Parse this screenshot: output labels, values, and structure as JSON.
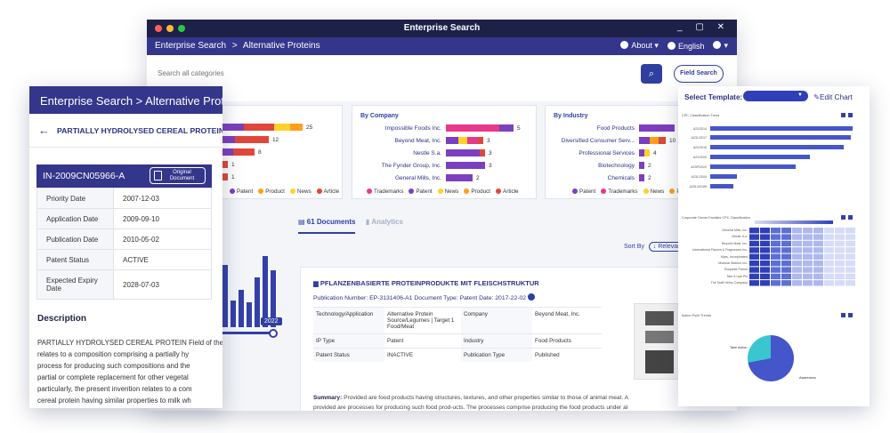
{
  "main_window": {
    "title": "Enterprise Search",
    "breadcrumb": [
      "Enterprise Search",
      ">",
      "Alternative Proteins"
    ],
    "nav": {
      "about": "About",
      "language": "English"
    },
    "search": {
      "placeholder": "Search all categories",
      "field_search": "Field Search"
    },
    "company_card": {
      "title": "By Company",
      "rows": [
        {
          "label": "Impossible Foods Inc.",
          "value": "5"
        },
        {
          "label": "Beyond Meat, Inc.",
          "value": "3"
        },
        {
          "label": "Nestle S.a.",
          "value": "3"
        },
        {
          "label": "The Fynder Group, Inc.",
          "value": "3"
        },
        {
          "label": "General Mills, Inc.",
          "value": "2"
        }
      ]
    },
    "industry_card": {
      "title": "By Industry",
      "rows": [
        {
          "label": "Food Products",
          "value": ""
        },
        {
          "label": "Diversified Consumer Serv...",
          "value": "10"
        },
        {
          "label": "Professional Services",
          "value": "4"
        },
        {
          "label": "Biotechnology",
          "value": "2"
        },
        {
          "label": "Chemicals",
          "value": "2"
        }
      ]
    },
    "first_card_values": [
      "25",
      "12",
      "8",
      "1",
      "1"
    ],
    "legend": [
      "Trademarks",
      "Patent",
      "Product",
      "News",
      "Article"
    ],
    "legend_short": [
      "Patent",
      "Product",
      "News",
      "Article"
    ],
    "timeline_year": "2022",
    "tabs": {
      "documents": "61 Documents",
      "analytics": "Analytics"
    },
    "sort": {
      "label": "Sort By",
      "value": "↓ Relevan"
    },
    "doc": {
      "title": "PFLANZENBASIERTE PROTEINPRODUKTE MIT FLEISCHSTRUKTUR",
      "meta": "Publication Number:  EP-3131406-A1    Document Type: Patent    Date:  2017-22-02",
      "rows": [
        {
          "k1": "Technology/Application",
          "v1": "Alternative Protein Source/Legumes | Target 1 Food/Meat",
          "k2": "Company",
          "v2": "Beyond Meat, Inc."
        },
        {
          "k1": "IP Type",
          "v1": "Patent",
          "k2": "Industry",
          "v2": "Food Products"
        },
        {
          "k1": "Patent Status",
          "v1": "INACTIVE",
          "k2": "Publication Type",
          "v2": "Published"
        }
      ],
      "summary_label": "Summary:",
      "summary": "Provided are food products having structures, textures, and other properties similar to those of animal meat. A",
      "summary2": "provided are processes for producing such food prod-ucts. The processes comprise producing the food products under al"
    }
  },
  "left_window": {
    "header": "Enterprise Search  >  Alternative Proteins",
    "title": "PARTIALLY HYDROLYSED CEREAL PROTEIN",
    "patent_id": "IN-2009CN05966-A",
    "original_doc": [
      "Original",
      "Document"
    ],
    "meta": [
      {
        "k": "Priority Date",
        "v": "2007-12-03"
      },
      {
        "k": "Application Date",
        "v": "2009-09-10"
      },
      {
        "k": "Publication Date",
        "v": "2010-05-02"
      },
      {
        "k": "Patent Status",
        "v": "ACTIVE"
      },
      {
        "k": "Expected Expiry Date",
        "v": "2028-07-03"
      }
    ],
    "description_heading": "Description",
    "description": [
      "PARTIALLY HYDROLYSED CEREAL PROTEIN Field of the",
      "relates to a composition comprising a partially hy",
      "process for producing such compositions and the",
      "partial or complete replacement for other vegetal",
      "particularly, the present invention relates to a com",
      "cereal protein having similar properties to milk wh"
    ]
  },
  "right_window": {
    "select_template": "Select Template:",
    "edit_chart": "Edit Chart",
    "chart1_title": "CPC Classification Trend",
    "chart2_title": "Corporate Owner Families CPC Classification",
    "chart3_title": "Action Point Trends",
    "chart1_labels": [
      "A23J3/14",
      "A23L33/17",
      "A23J3/16",
      "A23J3/00",
      "A23P20/20",
      "A23L13/00",
      "A23L33/185"
    ],
    "chart2_labels": [
      "General Mills, Inc.",
      "Nestle S.a.",
      "Beyond Meat, Inc.",
      "International Flavors & Fragrances Inc.",
      "Mars, Incorporated",
      "Modular Biotech Inc.",
      "Roquette Freres",
      "Tate & Lyle Plc",
      "The Kraft Heinz Company"
    ],
    "pie_labels": [
      "Take Action",
      "Awareness"
    ]
  },
  "colors": {
    "navy": "#1d2148",
    "indigo": "#33368a",
    "trademarks": "#e8388b",
    "patent": "#7c3fbf",
    "product": "#ff9f1c",
    "news": "#ffd12b",
    "article": "#e0473a",
    "chart_blue": "#4456c9",
    "pie_teal": "#39c6d0"
  }
}
